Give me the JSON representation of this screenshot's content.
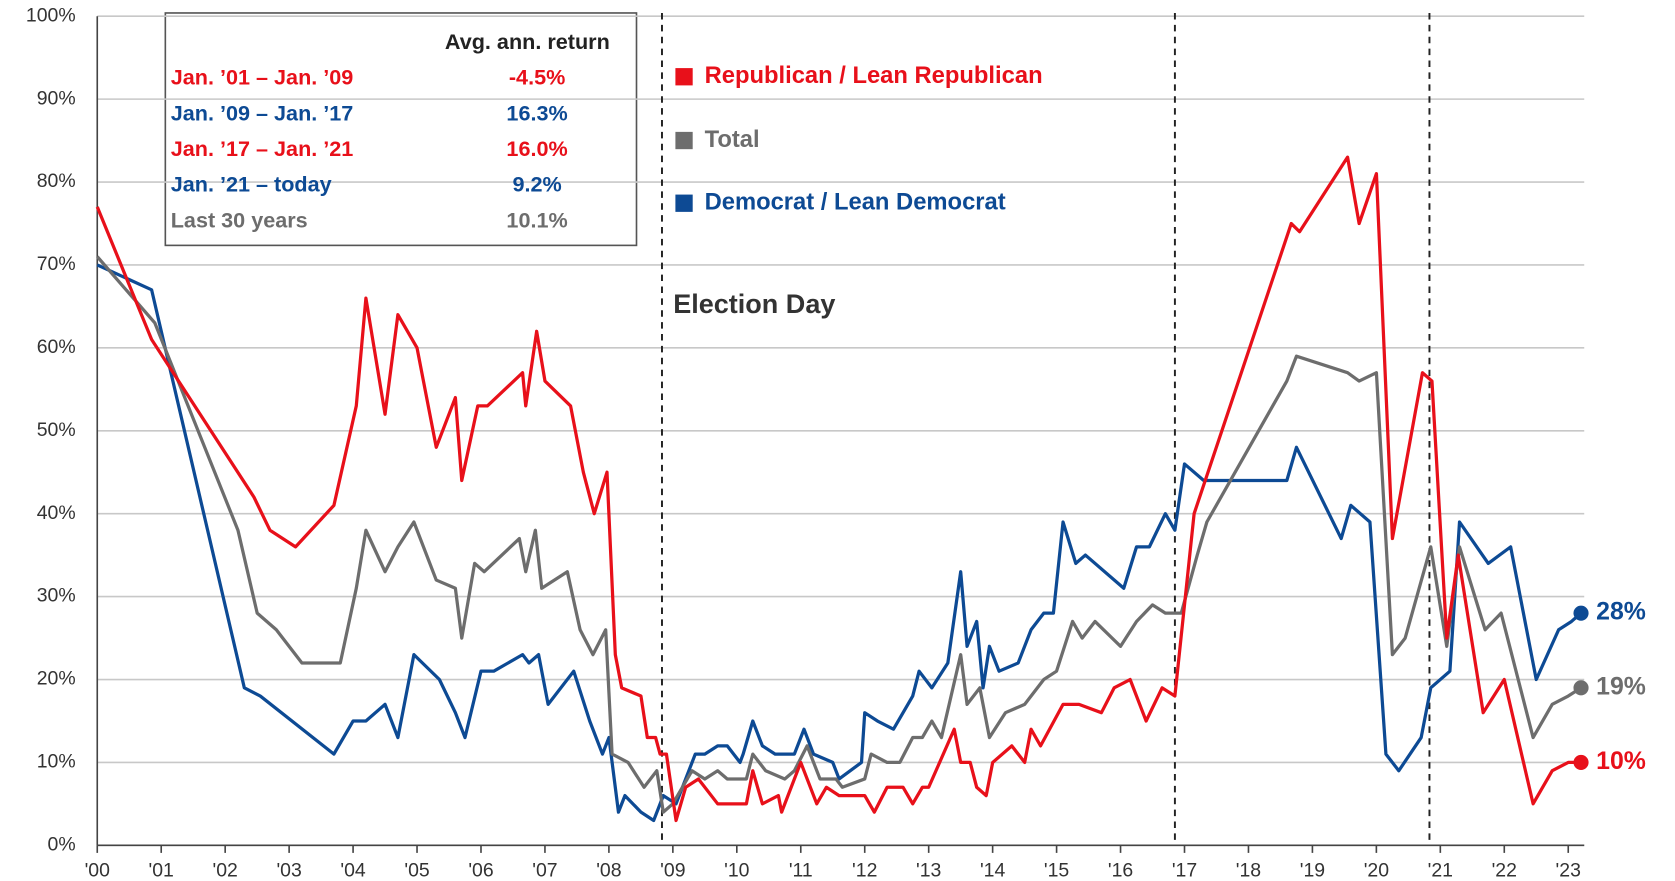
{
  "chart_data": {
    "type": "line",
    "annotation": "Election Day",
    "vlines": [
      2008.83,
      2016.85,
      2020.83
    ],
    "xlim": [
      2000,
      2023.25
    ],
    "xticks": [
      {
        "value": 2000,
        "label": "'00"
      },
      {
        "value": 2001,
        "label": "'01"
      },
      {
        "value": 2002,
        "label": "'02"
      },
      {
        "value": 2003,
        "label": "'03"
      },
      {
        "value": 2004,
        "label": "'04"
      },
      {
        "value": 2005,
        "label": "'05"
      },
      {
        "value": 2006,
        "label": "'06"
      },
      {
        "value": 2007,
        "label": "'07"
      },
      {
        "value": 2008,
        "label": "'08"
      },
      {
        "value": 2009,
        "label": "'09"
      },
      {
        "value": 2010,
        "label": "'10"
      },
      {
        "value": 2011,
        "label": "'11"
      },
      {
        "value": 2012,
        "label": "'12"
      },
      {
        "value": 2013,
        "label": "'13"
      },
      {
        "value": 2014,
        "label": "'14"
      },
      {
        "value": 2015,
        "label": "'15"
      },
      {
        "value": 2016,
        "label": "'16"
      },
      {
        "value": 2017,
        "label": "'17"
      },
      {
        "value": 2018,
        "label": "'18"
      },
      {
        "value": 2019,
        "label": "'19"
      },
      {
        "value": 2020,
        "label": "'20"
      },
      {
        "value": 2021,
        "label": "'21"
      },
      {
        "value": 2022,
        "label": "'22"
      },
      {
        "value": 2023,
        "label": "'23"
      }
    ],
    "ylim": [
      0,
      100
    ],
    "yticks": [
      {
        "value": 0,
        "label": "0%"
      },
      {
        "value": 10,
        "label": "10%"
      },
      {
        "value": 20,
        "label": "20%"
      },
      {
        "value": 30,
        "label": "30%"
      },
      {
        "value": 40,
        "label": "40%"
      },
      {
        "value": 50,
        "label": "50%"
      },
      {
        "value": 60,
        "label": "60%"
      },
      {
        "value": 70,
        "label": "70%"
      },
      {
        "value": 80,
        "label": "80%"
      },
      {
        "value": 90,
        "label": "90%"
      },
      {
        "value": 100,
        "label": "100%"
      }
    ],
    "grid": true,
    "table": {
      "header": "Avg. ann. return",
      "rows": [
        {
          "period": "Jan. ’01 – Jan. ’09",
          "return": "-4.5%",
          "color": "#e8101a"
        },
        {
          "period": "Jan. ’09 – Jan. ’17",
          "return": "16.3%",
          "color": "#0d4a94"
        },
        {
          "period": "Jan. ’17 – Jan. ’21",
          "return": "16.0%",
          "color": "#e8101a"
        },
        {
          "period": "Jan. ’21 – today",
          "return": "9.2%",
          "color": "#0d4a94"
        },
        {
          "period": "Last 30 years",
          "return": "10.1%",
          "color": "#6d6d6d"
        }
      ]
    },
    "series": [
      {
        "name": "Republican / Lean Republican",
        "color": "#e8101a",
        "end_label": "10%",
        "x": [
          2000,
          2000.85,
          2002.45,
          2002.7,
          2003.1,
          2003.7,
          2004.05,
          2004.2,
          2004.5,
          2004.7,
          2005.0,
          2005.3,
          2005.6,
          2005.7,
          2005.95,
          2006.1,
          2006.65,
          2006.7,
          2006.87,
          2007.0,
          2007.4,
          2007.6,
          2007.77,
          2007.97,
          2008.1,
          2008.2,
          2008.5,
          2008.6,
          2008.73,
          2008.8,
          2008.9,
          2009.05,
          2009.2,
          2009.4,
          2009.7,
          2010.15,
          2010.25,
          2010.4,
          2010.65,
          2010.7,
          2011.0,
          2011.25,
          2011.4,
          2011.6,
          2012.0,
          2012.15,
          2012.35,
          2012.6,
          2012.75,
          2012.9,
          2013.0,
          2013.4,
          2013.5,
          2013.65,
          2013.75,
          2013.9,
          2014.0,
          2014.3,
          2014.5,
          2014.6,
          2014.75,
          2015.1,
          2015.35,
          2015.7,
          2015.9,
          2016.15,
          2016.4,
          2016.65,
          2016.85,
          2017.15,
          2018.67,
          2018.8,
          2019.55,
          2019.73,
          2020.0,
          2020.25,
          2020.72,
          2020.87,
          2021.1,
          2021.28,
          2021.67,
          2022.0,
          2022.45,
          2022.75,
          2023.0,
          2023.2
        ],
        "values": [
          77,
          61,
          42,
          38,
          36,
          41,
          53,
          66,
          52,
          64,
          60,
          48,
          54,
          44,
          53,
          53,
          57,
          53,
          62,
          56,
          53,
          45,
          40,
          45,
          23,
          19,
          18,
          13,
          13,
          11,
          11,
          3,
          7,
          8,
          5,
          5,
          9,
          5,
          6,
          4,
          10,
          5,
          7,
          6,
          6,
          4,
          7,
          7,
          5,
          7,
          7,
          14,
          10,
          10,
          7,
          6,
          10,
          12,
          10,
          14,
          12,
          17,
          17,
          16,
          19,
          20,
          15,
          19,
          18,
          40,
          75,
          74,
          83,
          75,
          81,
          37,
          57,
          56,
          25,
          35,
          16,
          20,
          5,
          9,
          10,
          10
        ]
      },
      {
        "name": "Total",
        "color": "#6d6d6d",
        "end_label": "19%",
        "x": [
          2000,
          2000.9,
          2002.2,
          2002.5,
          2002.8,
          2003.2,
          2003.8,
          2004.05,
          2004.2,
          2004.5,
          2004.7,
          2004.95,
          2005.3,
          2005.6,
          2005.7,
          2005.9,
          2006.05,
          2006.6,
          2006.7,
          2006.85,
          2006.95,
          2007.35,
          2007.55,
          2007.75,
          2007.95,
          2008.05,
          2008.3,
          2008.55,
          2008.75,
          2008.85,
          2009.0,
          2009.3,
          2009.5,
          2009.7,
          2009.85,
          2010.15,
          2010.25,
          2010.45,
          2010.75,
          2010.9,
          2011.1,
          2011.3,
          2011.55,
          2011.65,
          2012.0,
          2012.1,
          2012.35,
          2012.55,
          2012.75,
          2012.9,
          2013.05,
          2013.2,
          2013.5,
          2013.6,
          2013.8,
          2013.95,
          2014.2,
          2014.5,
          2014.8,
          2015.0,
          2015.25,
          2015.4,
          2015.6,
          2016.0,
          2016.25,
          2016.5,
          2016.7,
          2016.95,
          2017.2,
          2017.35,
          2018.6,
          2018.75,
          2019.55,
          2019.73,
          2020.0,
          2020.25,
          2020.45,
          2020.85,
          2021.1,
          2021.3,
          2021.7,
          2021.95,
          2022.45,
          2022.75,
          2023.0,
          2023.2
        ],
        "values": [
          71,
          63,
          38,
          28,
          26,
          22,
          22,
          31,
          38,
          33,
          36,
          39,
          32,
          31,
          25,
          34,
          33,
          37,
          33,
          38,
          31,
          33,
          26,
          23,
          26,
          11,
          10,
          7,
          9,
          4,
          5,
          9,
          8,
          9,
          8,
          8,
          11,
          9,
          8,
          9,
          12,
          8,
          8,
          7,
          8,
          11,
          10,
          10,
          13,
          13,
          15,
          13,
          23,
          17,
          19,
          13,
          16,
          17,
          20,
          21,
          27,
          25,
          27,
          24,
          27,
          29,
          28,
          28,
          35,
          39,
          56,
          59,
          57,
          56,
          57,
          23,
          25,
          36,
          24,
          36,
          26,
          28,
          13,
          17,
          18,
          19
        ]
      },
      {
        "name": "Democrat / Lean Democrat",
        "color": "#0d4a94",
        "end_label": "28%",
        "x": [
          2000,
          2000.85,
          2002.3,
          2002.55,
          2003.7,
          2004.0,
          2004.2,
          2004.5,
          2004.7,
          2004.95,
          2005.35,
          2005.6,
          2005.75,
          2006.0,
          2006.2,
          2006.65,
          2006.75,
          2006.9,
          2007.05,
          2007.45,
          2007.7,
          2007.9,
          2008.0,
          2008.15,
          2008.25,
          2008.5,
          2008.7,
          2008.85,
          2009.05,
          2009.35,
          2009.5,
          2009.7,
          2009.85,
          2010.05,
          2010.1,
          2010.25,
          2010.4,
          2010.6,
          2010.9,
          2011.05,
          2011.2,
          2011.5,
          2011.6,
          2011.95,
          2012.0,
          2012.2,
          2012.45,
          2012.75,
          2012.85,
          2013.05,
          2013.3,
          2013.5,
          2013.6,
          2013.75,
          2013.85,
          2013.95,
          2014.1,
          2014.4,
          2014.6,
          2014.8,
          2014.95,
          2015.1,
          2015.3,
          2015.45,
          2016.05,
          2016.25,
          2016.45,
          2016.7,
          2016.85,
          2017.0,
          2017.3,
          2018.6,
          2018.75,
          2019.45,
          2019.6,
          2019.9,
          2020.15,
          2020.35,
          2020.7,
          2020.85,
          2021.15,
          2021.3,
          2021.75,
          2022.1,
          2022.5,
          2022.85,
          2023.05,
          2023.2
        ],
        "values": [
          70,
          67,
          19,
          18,
          11,
          15,
          15,
          17,
          13,
          23,
          20,
          16,
          13,
          21,
          21,
          23,
          22,
          23,
          17,
          21,
          15,
          11,
          13,
          4,
          6,
          4,
          3,
          6,
          5,
          11,
          11,
          12,
          12,
          10,
          11,
          15,
          12,
          11,
          11,
          14,
          11,
          10,
          8,
          10,
          16,
          15,
          14,
          18,
          21,
          19,
          22,
          33,
          24,
          27,
          19,
          24,
          21,
          22,
          26,
          28,
          28,
          39,
          34,
          35,
          31,
          36,
          36,
          40,
          38,
          46,
          44,
          44,
          48,
          37,
          41,
          39,
          11,
          9,
          13,
          19,
          21,
          39,
          34,
          36,
          20,
          26,
          27,
          28
        ]
      }
    ]
  }
}
